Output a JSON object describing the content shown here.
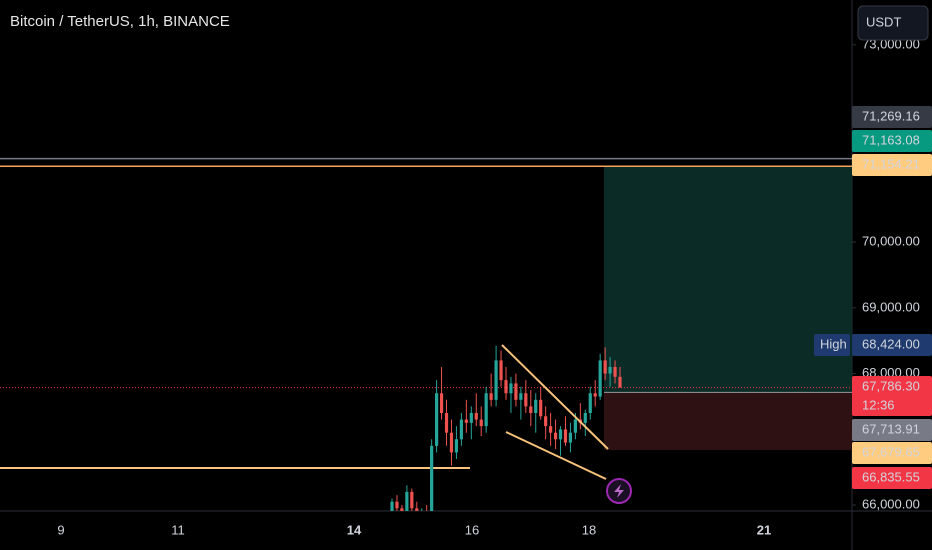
{
  "chart_data": {
    "type": "candlestick",
    "title": "Bitcoin / TetherUS, 1h, BINANCE",
    "currency_button": "USDT",
    "up_color": "#26a69a",
    "down_color": "#ef5350",
    "ylim": [
      65909,
      73683
    ],
    "yticks": [
      {
        "value": 73000,
        "label": "73,000.00"
      },
      {
        "value": 70000,
        "label": "70,000.00"
      },
      {
        "value": 69000,
        "label": "69,000.00"
      },
      {
        "value": 68000,
        "label": "68,000.00"
      },
      {
        "value": 66000,
        "label": "66,000.00"
      }
    ],
    "categories": [
      "9",
      "11",
      "14",
      "16",
      "18",
      "21"
    ],
    "candles": [
      [
        65900,
        66100,
        65800,
        66050
      ],
      [
        66050,
        66150,
        65850,
        65950
      ],
      [
        65950,
        66000,
        65800,
        65900
      ],
      [
        65900,
        66300,
        65850,
        66200
      ],
      [
        66200,
        66250,
        65900,
        65950
      ],
      [
        65950,
        66050,
        65800,
        65850
      ],
      [
        65850,
        65950,
        65750,
        65900
      ],
      [
        65900,
        66000,
        65800,
        65850
      ],
      [
        65850,
        67000,
        65800,
        66900
      ],
      [
        66900,
        67900,
        66800,
        67700
      ],
      [
        67700,
        68100,
        67300,
        67400
      ],
      [
        67400,
        67600,
        66900,
        67100
      ],
      [
        67100,
        67300,
        66600,
        66800
      ],
      [
        66800,
        67200,
        66700,
        67000
      ],
      [
        67000,
        67400,
        66900,
        67300
      ],
      [
        67300,
        67600,
        67100,
        67250
      ],
      [
        67250,
        67500,
        67000,
        67400
      ],
      [
        67400,
        67700,
        67200,
        67300
      ],
      [
        67300,
        67500,
        67050,
        67200
      ],
      [
        67200,
        67800,
        67100,
        67700
      ],
      [
        67700,
        68000,
        67500,
        67600
      ],
      [
        67600,
        68424,
        67500,
        68200
      ],
      [
        68200,
        68350,
        67800,
        67900
      ],
      [
        67900,
        68100,
        67600,
        67700
      ],
      [
        67700,
        67950,
        67400,
        67850
      ],
      [
        67850,
        68000,
        67500,
        67600
      ],
      [
        67600,
        67800,
        67300,
        67700
      ],
      [
        67700,
        67900,
        67400,
        67500
      ],
      [
        67500,
        67750,
        67200,
        67400
      ],
      [
        67400,
        67700,
        67100,
        67600
      ],
      [
        67600,
        67800,
        67300,
        67350
      ],
      [
        67350,
        67500,
        67000,
        67200
      ],
      [
        67200,
        67400,
        66900,
        67100
      ],
      [
        67100,
        67300,
        66850,
        67000
      ],
      [
        67000,
        67200,
        66750,
        67150
      ],
      [
        67150,
        67350,
        66900,
        66950
      ],
      [
        66950,
        67250,
        66800,
        67100
      ],
      [
        67100,
        67400,
        67000,
        67300
      ],
      [
        67300,
        67550,
        67150,
        67250
      ],
      [
        67250,
        67450,
        67050,
        67400
      ],
      [
        67400,
        67800,
        67300,
        67700
      ],
      [
        67700,
        67900,
        67500,
        67650
      ],
      [
        67650,
        68300,
        67600,
        68200
      ],
      [
        68200,
        68400,
        67900,
        68000
      ],
      [
        68000,
        68250,
        67800,
        68100
      ],
      [
        68100,
        68200,
        67850,
        67950
      ],
      [
        67950,
        68100,
        67800,
        67786.3
      ]
    ],
    "support_line": 66564,
    "price_tags": [
      {
        "value": 71269.16,
        "label": "71,269.16",
        "color": "#363a45"
      },
      {
        "value": 71163.08,
        "label": "71,163.08",
        "color": "#089981"
      },
      {
        "value": 71154.21,
        "label": "71,154.21",
        "color": "#ffcc80"
      },
      {
        "value": 68424,
        "label": "68,424.00",
        "color": "#1e3a6e",
        "caption": "High"
      },
      {
        "value": 67786.3,
        "label": "67,786.30",
        "color": "#f23645",
        "countdown": "12:36"
      },
      {
        "value": 67713.91,
        "label": "67,713.91",
        "color": "#787b86"
      },
      {
        "value": 67679.65,
        "label": "67,679.65",
        "color": "#ffcc80"
      },
      {
        "value": 66835.55,
        "label": "66,835.55",
        "color": "#f23645"
      }
    ]
  }
}
